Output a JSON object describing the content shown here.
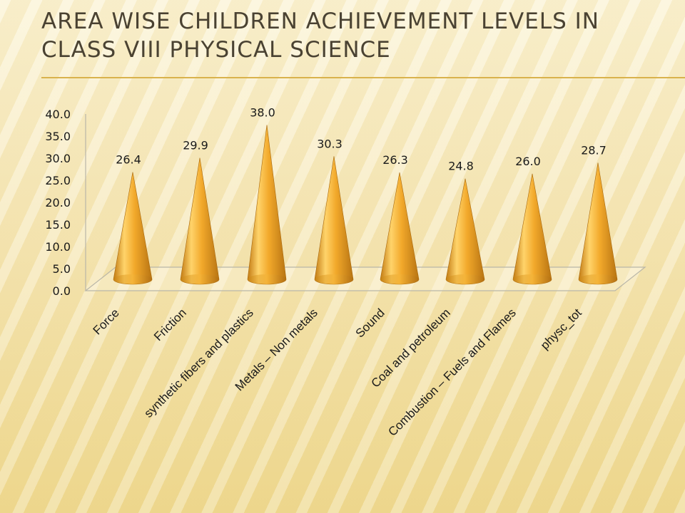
{
  "title": "AREA WISE CHILDREN ACHIEVEMENT LEVELS IN CLASS VIII PHYSICAL SCIENCE",
  "chart_data": {
    "type": "bar",
    "bar_shape": "3d-cone",
    "title": "AREA WISE CHILDREN ACHIEVEMENT LEVELS IN CLASS VIII PHYSICAL SCIENCE",
    "categories": [
      "Force",
      "Friction",
      "synthetic fibers and plastics",
      "Metals – Non metals",
      "Sound",
      "Coal and  petroleum",
      "Combustion – Fuels and Flames",
      "physc_tot"
    ],
    "values": [
      26.4,
      29.9,
      38.0,
      30.3,
      26.3,
      24.8,
      26.0,
      28.7
    ],
    "value_labels": [
      "26.4",
      "29.9",
      "38.0",
      "30.3",
      "26.3",
      "24.8",
      "26.0",
      "28.7"
    ],
    "yticks": [
      "0.0",
      "5.0",
      "10.0",
      "15.0",
      "20.0",
      "25.0",
      "30.0",
      "35.0",
      "40.0"
    ],
    "ylim": [
      0,
      40
    ],
    "xlabel": "",
    "ylabel": "",
    "grid": false,
    "legend": "none",
    "colors": {
      "cone_light": "#ffd36a",
      "cone_mid": "#f2a92b",
      "cone_dark": "#b87412",
      "axis": "#b9b6a8"
    }
  }
}
